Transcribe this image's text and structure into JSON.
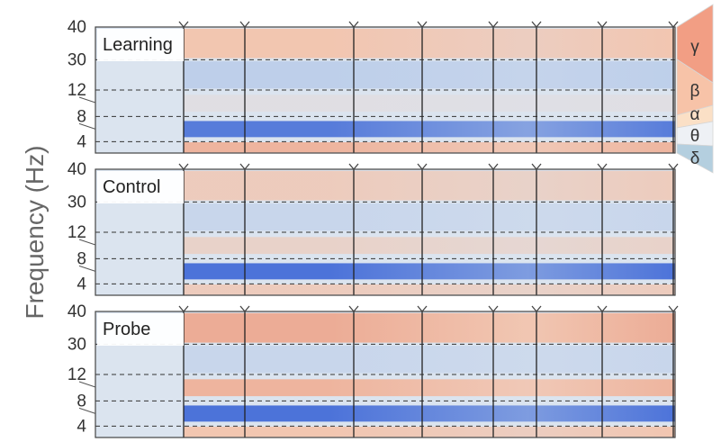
{
  "chart_data": {
    "type": "heatmap",
    "ylabel": "Frequency (Hz)",
    "y_ticks": [
      "40",
      "30",
      "12",
      "8",
      "4"
    ],
    "band_boundaries_hz": [
      4,
      8,
      12,
      30
    ],
    "event_markers": 8,
    "colors": {
      "baseline": "#dbe4ef",
      "low": "#3a64d6",
      "mid_low": "#a8bfe6",
      "mid_high": "#f3c4ad",
      "high": "#e06a4e",
      "band_gamma": "#f29e84",
      "band_beta": "#f7c3a8",
      "band_alpha": "#fbe0c6",
      "band_theta": "#eef1f5",
      "band_delta": "#b4cfdf"
    },
    "bands": [
      {
        "symbol": "γ",
        "range_hz": [
          30,
          40
        ]
      },
      {
        "symbol": "β",
        "range_hz": [
          12,
          30
        ]
      },
      {
        "symbol": "α",
        "range_hz": [
          8,
          12
        ]
      },
      {
        "symbol": "θ",
        "range_hz": [
          4,
          8
        ]
      },
      {
        "symbol": "δ",
        "range_hz": [
          0,
          4
        ]
      }
    ],
    "panels": [
      {
        "title": "Learning",
        "rows": [
          {
            "band": "γ",
            "level": 0.5
          },
          {
            "band": "β",
            "level": -0.3
          },
          {
            "band": "α",
            "level": 0.1
          },
          {
            "band": "θ",
            "level": -0.9
          },
          {
            "band": "δ",
            "level": 0.6
          }
        ]
      },
      {
        "title": "Control",
        "rows": [
          {
            "band": "γ",
            "level": 0.4
          },
          {
            "band": "β",
            "level": -0.2
          },
          {
            "band": "α",
            "level": 0.3
          },
          {
            "band": "θ",
            "level": -0.95
          },
          {
            "band": "δ",
            "level": 0.4
          }
        ]
      },
      {
        "title": "Probe",
        "rows": [
          {
            "band": "γ",
            "level": 0.65
          },
          {
            "band": "β",
            "level": -0.2
          },
          {
            "band": "α",
            "level": 0.6
          },
          {
            "band": "θ",
            "level": -0.95
          },
          {
            "band": "δ",
            "level": 0.5
          }
        ]
      }
    ]
  }
}
